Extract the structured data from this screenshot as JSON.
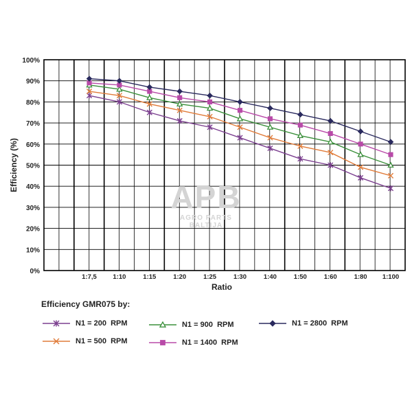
{
  "watermark": {
    "logo": "APB",
    "subtitle": "AGRO PARTS BALTIJA"
  },
  "chart_data": {
    "type": "line",
    "title": "",
    "xlabel": "Ratio",
    "ylabel": "Efficiency (%)",
    "categories": [
      "1:7,5",
      "1:10",
      "1:15",
      "1:20",
      "1:25",
      "1:30",
      "1:40",
      "1:50",
      "1:60",
      "1:80",
      "1:100"
    ],
    "y_ticks": [
      "0%",
      "10%",
      "20%",
      "30%",
      "40%",
      "50%",
      "60%",
      "70%",
      "80%",
      "90%",
      "100%"
    ],
    "ylim": [
      0,
      100
    ],
    "grid": true,
    "legend_title": "Efficiency GMR075 by:",
    "legend_position": "bottom",
    "series": [
      {
        "name": "N1 = 200  RPM",
        "color": "#7b3f8f",
        "marker": "asterisk",
        "values": [
          83,
          80,
          75,
          71,
          68,
          63,
          58,
          53,
          50,
          44,
          39
        ]
      },
      {
        "name": "N1 = 500  RPM",
        "color": "#e07b39",
        "marker": "cross",
        "values": [
          85,
          83,
          79,
          76,
          73,
          68,
          63,
          59,
          56,
          49,
          45
        ]
      },
      {
        "name": "N1 = 900  RPM",
        "color": "#3a8f3a",
        "marker": "triangle",
        "values": [
          88,
          86,
          82,
          79,
          77,
          72,
          68,
          64,
          61,
          55,
          50
        ]
      },
      {
        "name": "N1 = 1400  RPM",
        "color": "#b84aa8",
        "marker": "square",
        "values": [
          89,
          88,
          85,
          82,
          80,
          76,
          72,
          69,
          65,
          60,
          55
        ]
      },
      {
        "name": "N1 = 2800  RPM",
        "color": "#2a2a5e",
        "marker": "diamond",
        "values": [
          91,
          90,
          87,
          85,
          83,
          80,
          77,
          74,
          71,
          66,
          61
        ]
      }
    ]
  }
}
